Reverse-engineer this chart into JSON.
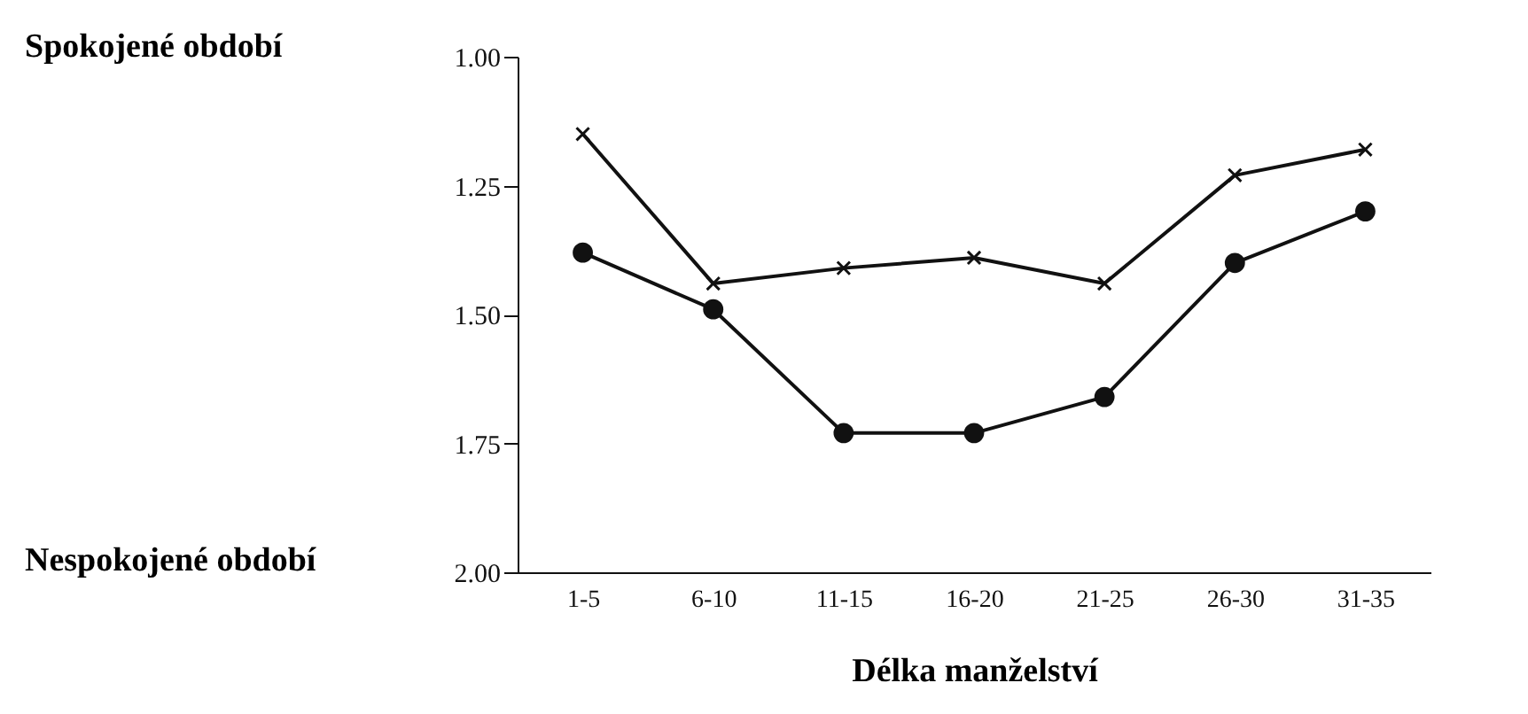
{
  "chart_data": {
    "type": "line",
    "xlabel": "Délka manželství",
    "categories": [
      "1-5",
      "6-10",
      "11-15",
      "16-20",
      "21-25",
      "26-30",
      "31-35"
    ],
    "series": [
      {
        "color": "#111111",
        "marker": "cross",
        "values": [
          1.15,
          1.44,
          1.41,
          1.39,
          1.44,
          1.23,
          1.18
        ]
      },
      {
        "color": "#111111",
        "marker": "circle",
        "values": [
          1.38,
          1.49,
          1.73,
          1.73,
          1.66,
          1.4,
          1.3
        ]
      }
    ],
    "ylim": [
      2.0,
      1.0
    ],
    "yticks": [
      {
        "value": 1.0,
        "label": "1.00"
      },
      {
        "value": 1.25,
        "label": "1.25"
      },
      {
        "value": 1.5,
        "label": "1.50"
      },
      {
        "value": 1.75,
        "label": "1.75"
      },
      {
        "value": 2.0,
        "label": "2.00"
      }
    ],
    "grid": false,
    "line_style": "solid",
    "annotations": [
      "Spokojené období",
      "Nespokojené období"
    ]
  }
}
